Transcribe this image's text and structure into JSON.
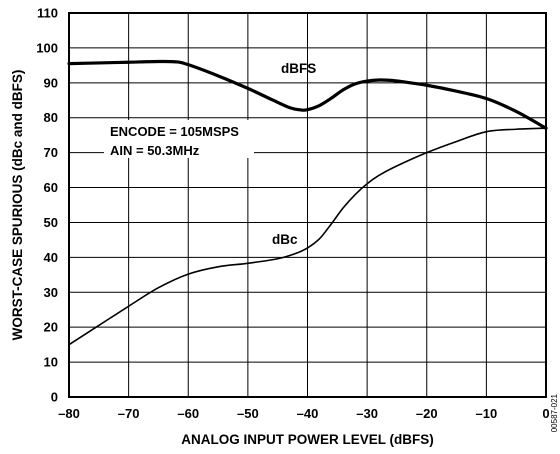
{
  "chart_data": {
    "type": "line",
    "title": "",
    "xlabel": "ANALOG INPUT POWER LEVEL (dBFS)",
    "ylabel": "WORST-CASE SPURIOUS (dBc and dBFS)",
    "xlim": [
      -80,
      0
    ],
    "ylim": [
      0,
      110
    ],
    "x_ticks": [
      "–80",
      "–70",
      "–60",
      "–50",
      "–40",
      "–30",
      "–20",
      "–10",
      "0"
    ],
    "y_ticks": [
      "0",
      "10",
      "20",
      "30",
      "40",
      "50",
      "60",
      "70",
      "80",
      "90",
      "100",
      "110"
    ],
    "grid": true,
    "series": [
      {
        "name": "dBFS",
        "color": "#000000",
        "x": [
          -80,
          -75,
          -70,
          -65,
          -62,
          -60,
          -55,
          -50,
          -46,
          -43,
          -41,
          -40,
          -38,
          -36,
          -34,
          -32,
          -30,
          -28,
          -26,
          -24,
          -20,
          -15,
          -10,
          -5,
          0
        ],
        "y": [
          95.5,
          95.7,
          95.9,
          96.1,
          96.0,
          95.2,
          92.0,
          88.4,
          85.2,
          82.9,
          82.2,
          82.3,
          83.5,
          85.6,
          88.0,
          89.7,
          90.5,
          90.8,
          90.7,
          90.3,
          89.3,
          87.6,
          85.5,
          81.8,
          77.0
        ]
      },
      {
        "name": "dBc",
        "color": "#000000",
        "x": [
          -80,
          -75,
          -70,
          -65,
          -60,
          -55,
          -50,
          -45,
          -42,
          -40,
          -38,
          -36,
          -34,
          -32,
          -30,
          -28,
          -25,
          -20,
          -15,
          -10,
          -5,
          0
        ],
        "y": [
          15.0,
          20.5,
          26.0,
          31.3,
          35.2,
          37.3,
          38.3,
          39.6,
          41.1,
          42.7,
          45.3,
          49.6,
          54.2,
          58.0,
          61.1,
          63.5,
          66.2,
          70.0,
          73.2,
          76.0,
          76.7,
          77.0
        ]
      }
    ],
    "annotations": [
      "dBFS",
      "dBc",
      "ENCODE = 105MSPS",
      "AIN = 50.3MHz"
    ]
  },
  "figure_id": "00587-021"
}
